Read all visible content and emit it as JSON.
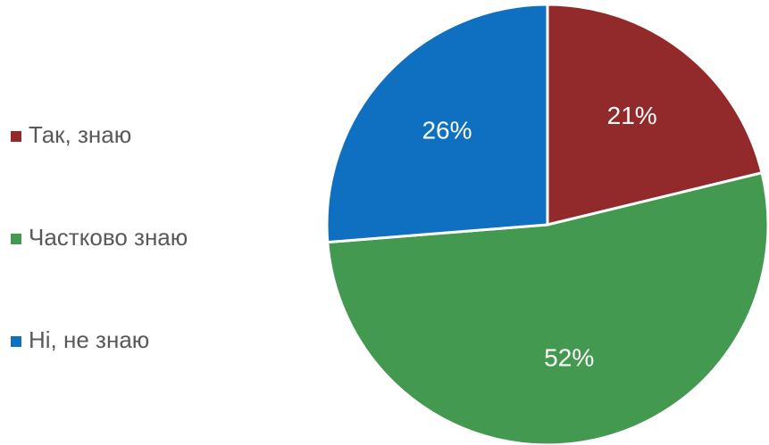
{
  "chart_data": {
    "type": "pie",
    "categories": [
      "Так, знаю",
      "Частково знаю",
      "Ні, не знаю"
    ],
    "values": [
      21,
      52,
      26
    ],
    "value_labels": [
      "21%",
      "52%",
      "26%"
    ],
    "colors": [
      "#922a2b",
      "#43994f",
      "#0f6fc0"
    ],
    "legend": "left"
  }
}
